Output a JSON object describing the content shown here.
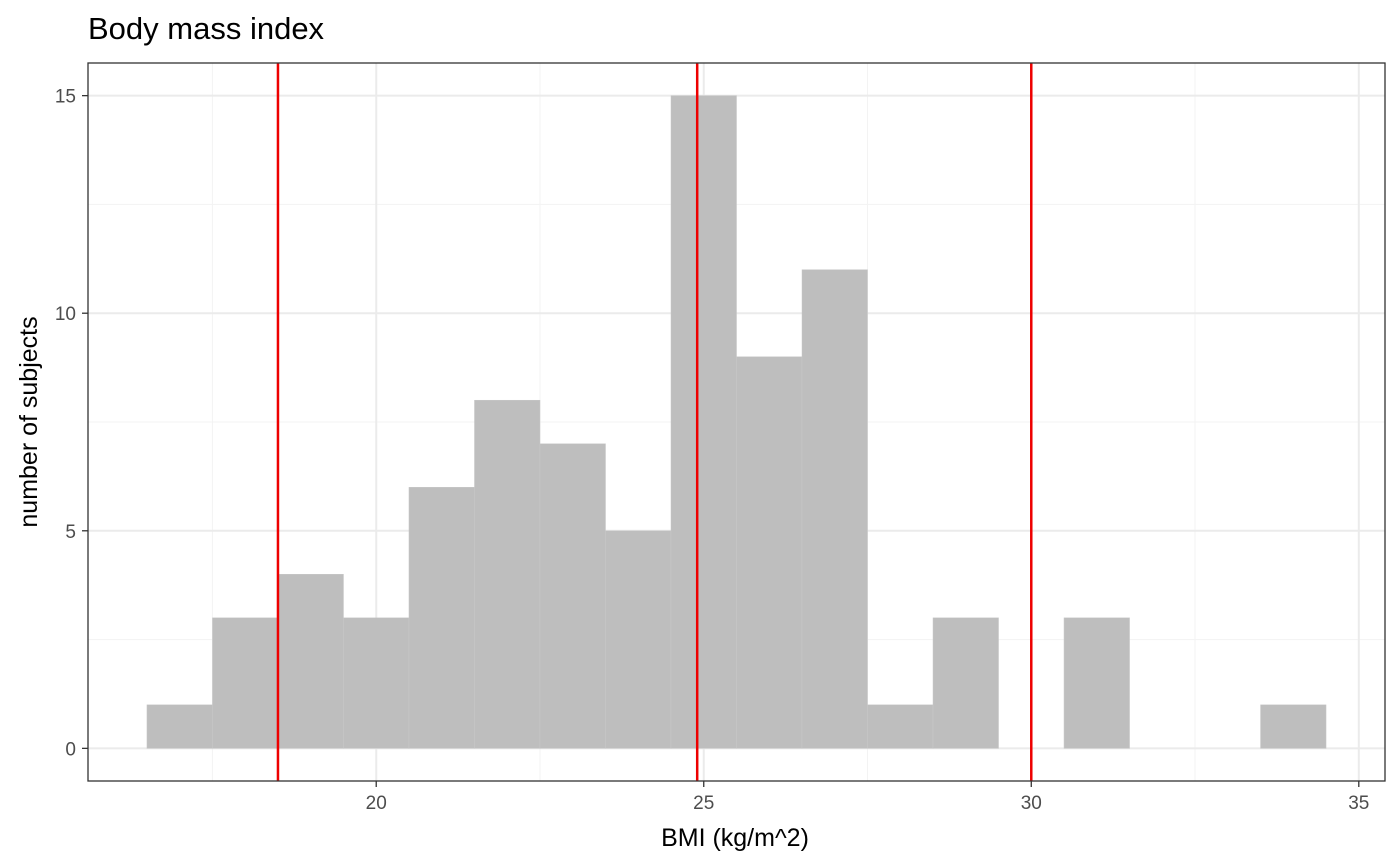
{
  "chart_data": {
    "type": "histogram",
    "title": "Body mass index",
    "xlabel": "BMI (kg/m^2)",
    "ylabel": "number of subjects",
    "bin_width": 1,
    "bins": [
      {
        "center": 17,
        "count": 1
      },
      {
        "center": 18,
        "count": 3
      },
      {
        "center": 19,
        "count": 4
      },
      {
        "center": 20,
        "count": 3
      },
      {
        "center": 21,
        "count": 6
      },
      {
        "center": 22,
        "count": 8
      },
      {
        "center": 23,
        "count": 7
      },
      {
        "center": 24,
        "count": 5
      },
      {
        "center": 25,
        "count": 15
      },
      {
        "center": 26,
        "count": 9
      },
      {
        "center": 27,
        "count": 11
      },
      {
        "center": 28,
        "count": 1
      },
      {
        "center": 29,
        "count": 3
      },
      {
        "center": 30,
        "count": 0
      },
      {
        "center": 31,
        "count": 3
      },
      {
        "center": 32,
        "count": 0
      },
      {
        "center": 33,
        "count": 0
      },
      {
        "center": 34,
        "count": 1
      }
    ],
    "reference_lines": [
      18.5,
      24.9,
      30
    ],
    "xlim": [
      15.6,
      35.4
    ],
    "ylim": [
      -0.75,
      15.75
    ],
    "x_ticks": [
      20,
      25,
      30,
      35
    ],
    "y_ticks": [
      0,
      5,
      10,
      15
    ],
    "grid": true,
    "colors": {
      "bar_fill": "#bebebe",
      "reference_line": "#ee0000",
      "panel_border": "#333333",
      "grid_major": "#ebebeb",
      "grid_minor": "#f3f3f3"
    }
  }
}
